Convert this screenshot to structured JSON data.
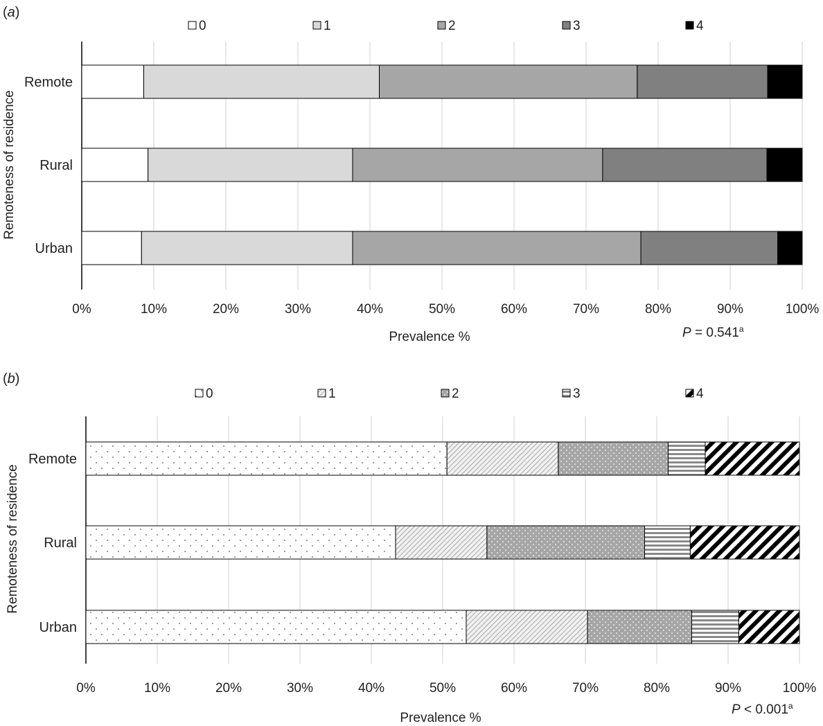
{
  "chart_data": [
    {
      "type": "bar",
      "orientation": "horizontal",
      "stacked": true,
      "panel_label": "a",
      "categories": [
        "Remote",
        "Rural",
        "Urban"
      ],
      "series": [
        {
          "name": "0",
          "values": [
            8.6,
            9.2,
            8.3
          ]
        },
        {
          "name": "1",
          "values": [
            32.7,
            28.4,
            29.3
          ]
        },
        {
          "name": "2",
          "values": [
            35.8,
            34.7,
            40.0
          ]
        },
        {
          "name": "3",
          "values": [
            18.1,
            22.8,
            19.0
          ]
        },
        {
          "name": "4",
          "values": [
            4.8,
            4.9,
            3.4
          ]
        }
      ],
      "fills": [
        "#ffffff",
        "#d9d9d9",
        "#a6a6a6",
        "#808080",
        "#000000"
      ],
      "xlabel": "Prevalence %",
      "ylabel": "Remoteness of residence",
      "xlim": [
        0,
        100
      ],
      "xticks": [
        "0%",
        "10%",
        "20%",
        "30%",
        "40%",
        "50%",
        "60%",
        "70%",
        "80%",
        "90%",
        "100%"
      ],
      "grid": "vertical",
      "legend_position": "top",
      "p_value": {
        "label": "P",
        "text": " = 0.541",
        "sup": "a"
      }
    },
    {
      "type": "bar",
      "orientation": "horizontal",
      "stacked": true,
      "panel_label": "b",
      "categories": [
        "Remote",
        "Rural",
        "Urban"
      ],
      "series": [
        {
          "name": "0",
          "values": [
            50.6,
            43.4,
            53.3
          ]
        },
        {
          "name": "1",
          "values": [
            15.6,
            12.8,
            17.0
          ]
        },
        {
          "name": "2",
          "values": [
            15.4,
            22.1,
            14.6
          ]
        },
        {
          "name": "3",
          "values": [
            5.2,
            6.4,
            6.6
          ]
        },
        {
          "name": "4",
          "values": [
            13.2,
            15.3,
            8.5
          ]
        }
      ],
      "patterns": [
        "sparse-dots",
        "diagonal-hatch",
        "grey-dots",
        "horizontal-stripes",
        "bold-diagonal"
      ],
      "xlabel": "Prevalence %",
      "ylabel": "Remoteness of residence",
      "xlim": [
        0,
        100
      ],
      "xticks": [
        "0%",
        "10%",
        "20%",
        "30%",
        "40%",
        "50%",
        "60%",
        "70%",
        "80%",
        "90%",
        "100%"
      ],
      "grid": "vertical",
      "legend_position": "top",
      "p_value": {
        "label": "P",
        "text": " < 0.001",
        "sup": "a"
      }
    }
  ]
}
